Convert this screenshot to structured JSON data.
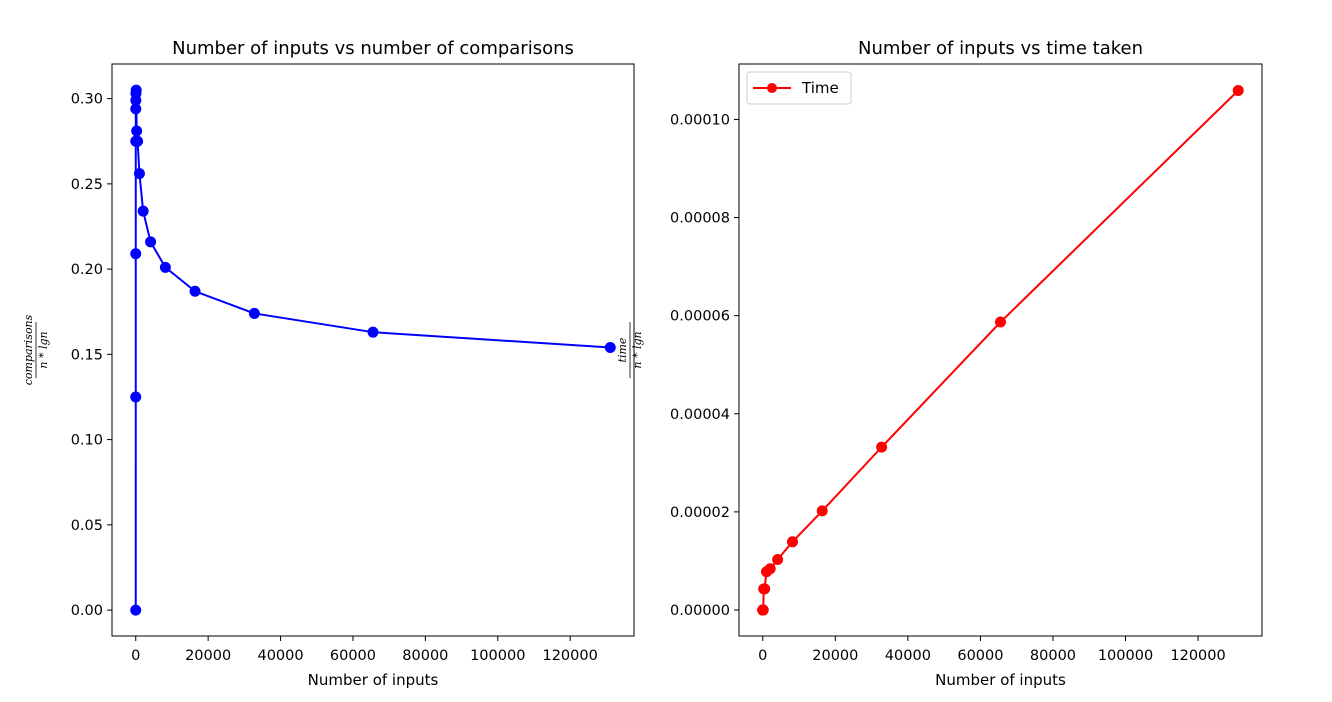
{
  "chart_data": [
    {
      "type": "line",
      "title": "Number of inputs vs number of comparisons",
      "xlabel": "Number of inputs",
      "ylabel_numerator": "comparisons",
      "ylabel_denominator": "n * lgn",
      "xlim": [
        -6554,
        137628
      ],
      "ylim": [
        -0.0152,
        0.3203
      ],
      "xticks": [
        0,
        20000,
        40000,
        60000,
        80000,
        100000,
        120000
      ],
      "xtick_labels": [
        "0",
        "20000",
        "40000",
        "60000",
        "80000",
        "100000",
        "120000"
      ],
      "yticks": [
        0.0,
        0.05,
        0.1,
        0.15,
        0.2,
        0.25,
        0.3
      ],
      "ytick_labels": [
        "0.00",
        "0.05",
        "0.10",
        "0.15",
        "0.20",
        "0.25",
        "0.30"
      ],
      "grid": false,
      "legend": false,
      "series": [
        {
          "color": "#0000ff",
          "marker": "circle",
          "x": [
            1,
            2,
            4,
            8,
            16,
            32,
            64,
            128,
            256,
            512,
            1024,
            2048,
            4096,
            8192,
            16384,
            32768,
            65536,
            131072
          ],
          "y": [
            0.0,
            0.125,
            0.209,
            0.275,
            0.294,
            0.299,
            0.303,
            0.305,
            0.281,
            0.275,
            0.256,
            0.234,
            0.216,
            0.201,
            0.187,
            0.174,
            0.163,
            0.154
          ]
        }
      ]
    },
    {
      "type": "line",
      "title": "Number of inputs vs time taken",
      "xlabel": "Number of inputs",
      "ylabel_numerator": "time",
      "ylabel_denominator": "n * lgn",
      "xlim": [
        -6554,
        137628
      ],
      "ylim": [
        -5.3e-06,
        0.0001113
      ],
      "xticks": [
        0,
        20000,
        40000,
        60000,
        80000,
        100000,
        120000
      ],
      "xtick_labels": [
        "0",
        "20000",
        "40000",
        "60000",
        "80000",
        "100000",
        "120000"
      ],
      "yticks": [
        0.0,
        2e-05,
        4e-05,
        6e-05,
        8e-05,
        0.0001
      ],
      "ytick_labels": [
        "0.00000",
        "0.00002",
        "0.00004",
        "0.00006",
        "0.00008",
        "0.00010"
      ],
      "grid": false,
      "legend": "top-left",
      "series": [
        {
          "name": "Time",
          "color": "#ff0000",
          "marker": "circle",
          "x": [
            1,
            2,
            4,
            8,
            16,
            32,
            64,
            128,
            256,
            512,
            1024,
            2048,
            4096,
            8192,
            16384,
            32768,
            65536,
            131072
          ],
          "y": [
            0.0,
            0.0,
            0.0,
            0.0,
            0.0,
            0.0,
            0.0,
            0.0,
            4.3e-06,
            4.3e-06,
            7.8e-06,
            8.4e-06,
            1.03e-05,
            1.39e-05,
            2.02e-05,
            3.32e-05,
            5.87e-05,
            0.0001059
          ]
        }
      ]
    }
  ]
}
